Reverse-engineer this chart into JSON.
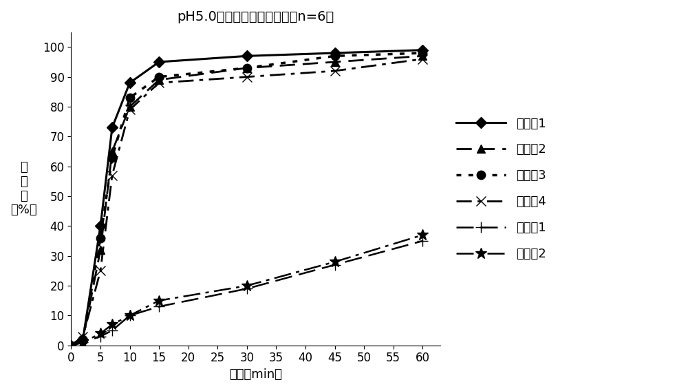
{
  "title": "pH5.0缓冲液中的溶出曲线（n=6）",
  "xlabel": "时间（min）",
  "ylabel_lines": [
    "释",
    "放",
    "量",
    "（%）"
  ],
  "xlim": [
    0,
    63
  ],
  "ylim": [
    0,
    105
  ],
  "xticks": [
    0,
    5,
    10,
    15,
    20,
    25,
    30,
    35,
    40,
    45,
    50,
    55,
    60
  ],
  "yticks": [
    0,
    10,
    20,
    30,
    40,
    50,
    60,
    70,
    80,
    90,
    100
  ],
  "series": [
    {
      "label": "实施例1",
      "x": [
        0,
        2,
        5,
        7,
        10,
        15,
        30,
        45,
        60
      ],
      "y": [
        0,
        2,
        40,
        73,
        88,
        95,
        97,
        98,
        99
      ],
      "linestyle": "solid",
      "marker": "D",
      "markersize": 8,
      "linewidth": 2.2,
      "dashes": []
    },
    {
      "label": "实施例2",
      "x": [
        0,
        2,
        5,
        7,
        10,
        15,
        30,
        45,
        60
      ],
      "y": [
        0,
        2,
        32,
        65,
        80,
        89,
        93,
        95,
        97
      ],
      "linestyle": "dashed",
      "marker": "^",
      "markersize": 9,
      "linewidth": 2.0,
      "dashes": [
        8,
        4
      ]
    },
    {
      "label": "实施例3",
      "x": [
        0,
        2,
        5,
        7,
        10,
        15,
        30,
        45,
        60
      ],
      "y": [
        0,
        2,
        36,
        63,
        83,
        90,
        93,
        97,
        98
      ],
      "linestyle": "dotted",
      "marker": "o",
      "markersize": 9,
      "linewidth": 2.5,
      "dashes": [
        2,
        3
      ]
    },
    {
      "label": "实施例4",
      "x": [
        0,
        2,
        5,
        7,
        10,
        15,
        30,
        45,
        60
      ],
      "y": [
        0,
        3,
        25,
        57,
        79,
        88,
        90,
        92,
        96
      ],
      "linestyle": "dashdot",
      "marker": "x",
      "markersize": 10,
      "linewidth": 2.0,
      "dashes": [
        8,
        3,
        2,
        3
      ]
    },
    {
      "label": "市售品1",
      "x": [
        0,
        2,
        5,
        7,
        10,
        15,
        30,
        45,
        60
      ],
      "y": [
        0,
        1,
        3,
        5,
        10,
        13,
        19,
        27,
        35
      ],
      "linestyle": "dashed",
      "marker": "+",
      "markersize": 11,
      "linewidth": 1.8,
      "dashes": [
        10,
        4
      ]
    },
    {
      "label": "市售品2",
      "x": [
        0,
        2,
        5,
        7,
        10,
        15,
        30,
        45,
        60
      ],
      "y": [
        0,
        1,
        4,
        7,
        10,
        15,
        20,
        28,
        37
      ],
      "linestyle": "dashdot",
      "marker": "*",
      "markersize": 12,
      "linewidth": 1.8,
      "dashes": [
        10,
        3,
        2,
        3
      ]
    }
  ],
  "background_color": "#ffffff",
  "legend_fontsize": 13,
  "title_fontsize": 14,
  "axis_fontsize": 13,
  "tick_fontsize": 12
}
